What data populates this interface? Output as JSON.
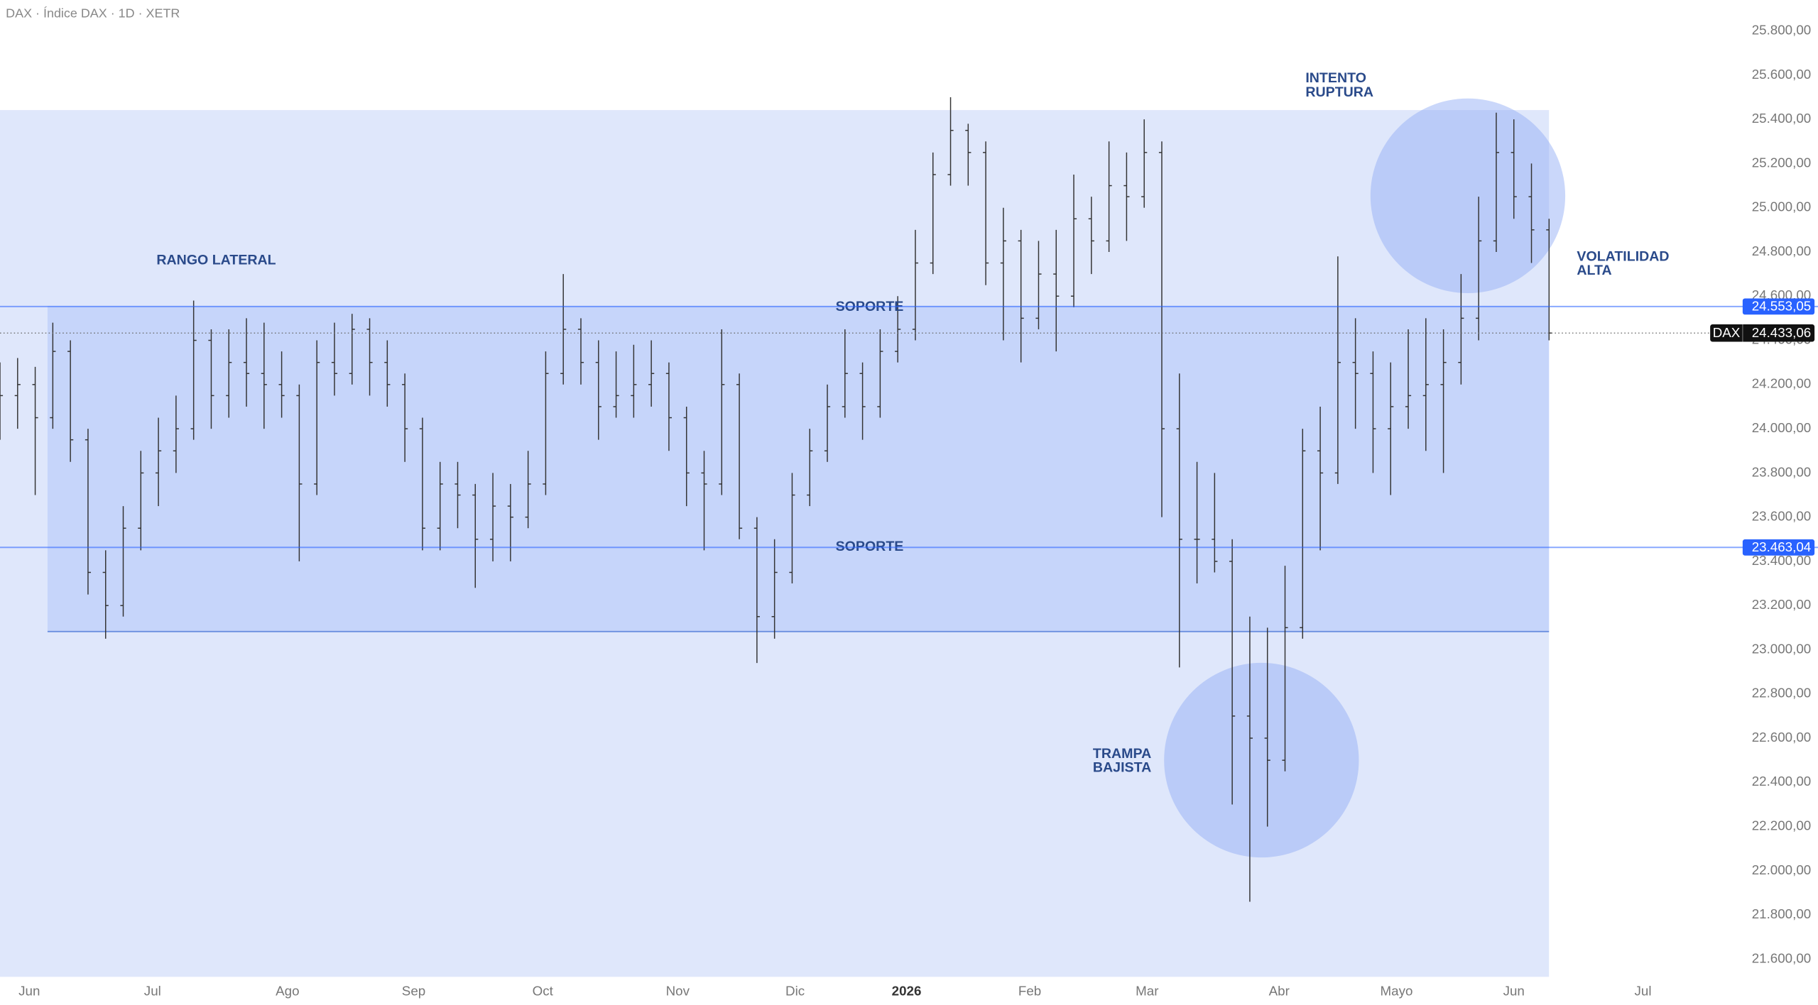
{
  "header": {
    "title": "DAX · Índice DAX · 1D · XETR"
  },
  "chart_data": {
    "type": "ohlc",
    "ylim": [
      21520,
      25940
    ],
    "yticks": [
      {
        "value": 21600,
        "label": "21.600,00"
      },
      {
        "value": 21800,
        "label": "21.800,00"
      },
      {
        "value": 22000,
        "label": "22.000,00"
      },
      {
        "value": 22200,
        "label": "22.200,00"
      },
      {
        "value": 22400,
        "label": "22.400,00"
      },
      {
        "value": 22600,
        "label": "22.600,00"
      },
      {
        "value": 22800,
        "label": "22.800,00"
      },
      {
        "value": 23000,
        "label": "23.000,00"
      },
      {
        "value": 23200,
        "label": "23.200,00"
      },
      {
        "value": 23400,
        "label": "23.400,00"
      },
      {
        "value": 23600,
        "label": "23.600,00"
      },
      {
        "value": 23800,
        "label": "23.800,00"
      },
      {
        "value": 24000,
        "label": "24.000,00"
      },
      {
        "value": 24200,
        "label": "24.200,00"
      },
      {
        "value": 24400,
        "label": "24.400,00"
      },
      {
        "value": 24600,
        "label": "24.600,00"
      },
      {
        "value": 24800,
        "label": "24.800,00"
      },
      {
        "value": 25000,
        "label": "25.000,00"
      },
      {
        "value": 25200,
        "label": "25.200,00"
      },
      {
        "value": 25400,
        "label": "25.400,00"
      },
      {
        "value": 25600,
        "label": "25.600,00"
      },
      {
        "value": 25800,
        "label": "25.800,00"
      }
    ],
    "xlim": [
      0,
      296
    ],
    "xticks": [
      {
        "value": 5,
        "label": "Jun"
      },
      {
        "value": 26,
        "label": "Jul"
      },
      {
        "value": 49,
        "label": "Ago"
      },
      {
        "value": 70.5,
        "label": "Sep"
      },
      {
        "value": 92.5,
        "label": "Oct"
      },
      {
        "value": 115.5,
        "label": "Nov"
      },
      {
        "value": 135.5,
        "label": "Dic"
      },
      {
        "value": 154.5,
        "label": "2026"
      },
      {
        "value": 175.5,
        "label": "Feb"
      },
      {
        "value": 195.5,
        "label": "Mar"
      },
      {
        "value": 218,
        "label": "Abr"
      },
      {
        "value": 238,
        "label": "Mayo"
      },
      {
        "value": 258,
        "label": "Jun"
      },
      {
        "value": 280,
        "label": "Jul"
      }
    ],
    "x": [
      0,
      3,
      6,
      9,
      12,
      15,
      18,
      21,
      24,
      27,
      30,
      33,
      36,
      39,
      42,
      45,
      48,
      51,
      54,
      57,
      60,
      63,
      66,
      69,
      72,
      75,
      78,
      81,
      84,
      87,
      90,
      93,
      96,
      99,
      102,
      105,
      108,
      111,
      114,
      117,
      120,
      123,
      126,
      129,
      132,
      135,
      138,
      141,
      144,
      147,
      150,
      153,
      156,
      159,
      162,
      165,
      168,
      171,
      174,
      177,
      180,
      183,
      186,
      189,
      192,
      195,
      198,
      201,
      204,
      207,
      210,
      213,
      216,
      219,
      222,
      225,
      228,
      231,
      234,
      237,
      240,
      243,
      246,
      249,
      252,
      255,
      258,
      261,
      264
    ],
    "series": [
      {
        "name": "DAX",
        "color": "#333333",
        "values": [
          [
            24100,
            24300,
            23950,
            24150
          ],
          [
            24150,
            24320,
            24000,
            24200
          ],
          [
            24200,
            24280,
            23700,
            24050
          ],
          [
            24050,
            24480,
            24000,
            24350
          ],
          [
            24350,
            24400,
            23850,
            23950
          ],
          [
            23950,
            24000,
            23250,
            23350
          ],
          [
            23350,
            23450,
            23050,
            23200
          ],
          [
            23200,
            23650,
            23150,
            23550
          ],
          [
            23550,
            23900,
            23450,
            23800
          ],
          [
            23800,
            24050,
            23650,
            23900
          ],
          [
            23900,
            24150,
            23800,
            24000
          ],
          [
            24000,
            24580,
            23950,
            24400
          ],
          [
            24400,
            24450,
            24000,
            24150
          ],
          [
            24150,
            24450,
            24050,
            24300
          ],
          [
            24300,
            24500,
            24100,
            24250
          ],
          [
            24250,
            24480,
            24000,
            24200
          ],
          [
            24200,
            24350,
            24050,
            24150
          ],
          [
            24150,
            24200,
            23400,
            23750
          ],
          [
            23750,
            24400,
            23700,
            24300
          ],
          [
            24300,
            24480,
            24150,
            24250
          ],
          [
            24250,
            24520,
            24200,
            24450
          ],
          [
            24450,
            24500,
            24150,
            24300
          ],
          [
            24300,
            24400,
            24100,
            24200
          ],
          [
            24200,
            24250,
            23850,
            24000
          ],
          [
            24000,
            24050,
            23450,
            23550
          ],
          [
            23550,
            23850,
            23450,
            23750
          ],
          [
            23750,
            23850,
            23550,
            23700
          ],
          [
            23700,
            23750,
            23280,
            23500
          ],
          [
            23500,
            23800,
            23400,
            23650
          ],
          [
            23650,
            23750,
            23400,
            23600
          ],
          [
            23600,
            23900,
            23550,
            23750
          ],
          [
            23750,
            24350,
            23700,
            24250
          ],
          [
            24250,
            24700,
            24200,
            24450
          ],
          [
            24450,
            24500,
            24200,
            24300
          ],
          [
            24300,
            24400,
            23950,
            24100
          ],
          [
            24100,
            24350,
            24050,
            24150
          ],
          [
            24150,
            24380,
            24050,
            24200
          ],
          [
            24200,
            24400,
            24100,
            24250
          ],
          [
            24250,
            24300,
            23900,
            24050
          ],
          [
            24050,
            24100,
            23650,
            23800
          ],
          [
            23800,
            23900,
            23450,
            23750
          ],
          [
            23750,
            24450,
            23700,
            24200
          ],
          [
            24200,
            24250,
            23500,
            23550
          ],
          [
            23550,
            23600,
            22940,
            23150
          ],
          [
            23150,
            23500,
            23050,
            23350
          ],
          [
            23350,
            23800,
            23300,
            23700
          ],
          [
            23700,
            24000,
            23650,
            23900
          ],
          [
            23900,
            24200,
            23850,
            24100
          ],
          [
            24100,
            24450,
            24050,
            24250
          ],
          [
            24250,
            24300,
            23950,
            24100
          ],
          [
            24100,
            24450,
            24050,
            24350
          ],
          [
            24350,
            24600,
            24300,
            24450
          ],
          [
            24450,
            24900,
            24400,
            24750
          ],
          [
            24750,
            25250,
            24700,
            25150
          ],
          [
            25150,
            25500,
            25100,
            25350
          ],
          [
            25350,
            25380,
            25100,
            25250
          ],
          [
            25250,
            25300,
            24650,
            24750
          ],
          [
            24750,
            25000,
            24400,
            24850
          ],
          [
            24850,
            24900,
            24300,
            24500
          ],
          [
            24500,
            24850,
            24450,
            24700
          ],
          [
            24700,
            24900,
            24350,
            24600
          ],
          [
            24600,
            25150,
            24550,
            24950
          ],
          [
            24950,
            25050,
            24700,
            24850
          ],
          [
            24850,
            25300,
            24800,
            25100
          ],
          [
            25100,
            25250,
            24850,
            25050
          ],
          [
            25050,
            25400,
            25000,
            25250
          ],
          [
            25250,
            25300,
            23600,
            24000
          ],
          [
            24000,
            24250,
            22920,
            23500
          ],
          [
            23500,
            23850,
            23300,
            23500
          ],
          [
            23500,
            23800,
            23350,
            23400
          ],
          [
            23400,
            23500,
            22300,
            22700
          ],
          [
            22700,
            23150,
            21860,
            22600
          ],
          [
            22600,
            23100,
            22200,
            22500
          ],
          [
            22500,
            23380,
            22450,
            23100
          ],
          [
            23100,
            24000,
            23050,
            23900
          ],
          [
            23900,
            24100,
            23450,
            23800
          ],
          [
            23800,
            24780,
            23750,
            24300
          ],
          [
            24300,
            24500,
            24000,
            24250
          ],
          [
            24250,
            24350,
            23800,
            24000
          ],
          [
            24000,
            24300,
            23700,
            24100
          ],
          [
            24100,
            24450,
            24000,
            24150
          ],
          [
            24150,
            24500,
            23900,
            24200
          ],
          [
            24200,
            24450,
            23800,
            24300
          ],
          [
            24300,
            24700,
            24200,
            24500
          ],
          [
            24500,
            25050,
            24400,
            24850
          ],
          [
            24850,
            25430,
            24800,
            25250
          ],
          [
            25250,
            25400,
            24950,
            25050
          ],
          [
            25050,
            25200,
            24750,
            24900
          ],
          [
            24900,
            24950,
            24400,
            24433.06
          ]
        ]
      }
    ],
    "levels": [
      {
        "value": 24553.05,
        "label": "24.553,05",
        "color": "#2962ff"
      },
      {
        "value": 23463.04,
        "label": "23.463,04",
        "color": "#2962ff"
      }
    ],
    "last_price": {
      "value": 24433.06,
      "label": "24.433,06"
    },
    "annotations": {
      "range": "RANGO LATERAL",
      "support_top": "SOPORTE",
      "support_bottom": "SOPORTE",
      "breakout": [
        "INTENTO",
        "RUPTURA"
      ],
      "trap": [
        "TRAMPA",
        "BAJISTA"
      ],
      "volatility": [
        "VOLATILIDAD",
        "ALTA"
      ]
    }
  }
}
